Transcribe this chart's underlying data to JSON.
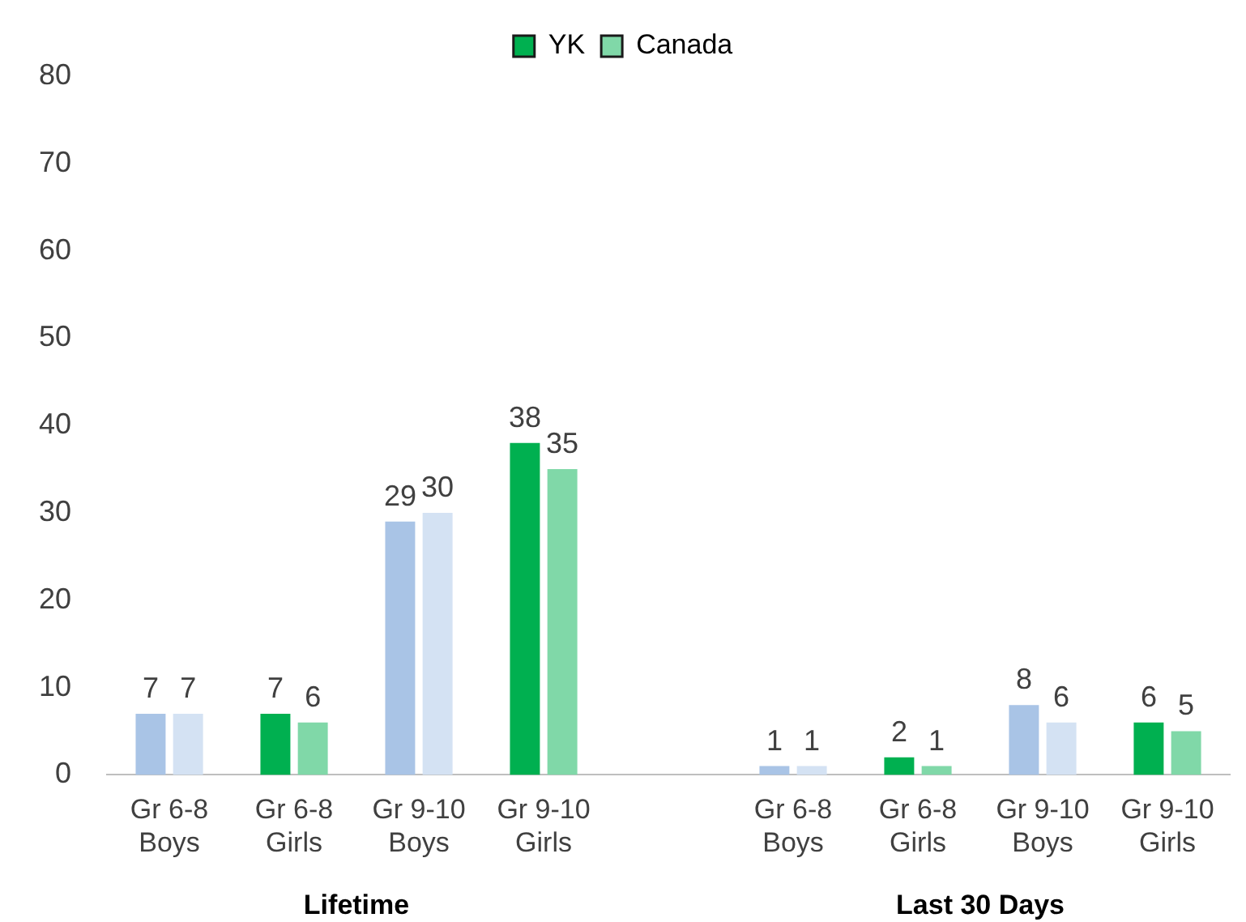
{
  "chart_data": {
    "type": "bar",
    "categories": [
      "Gr 6-8 Boys",
      "Gr 6-8 Girls",
      "Gr 9-10 Boys",
      "Gr 9-10 Girls",
      null,
      "Gr 6-8 Boys",
      "Gr 6-8 Girls",
      "Gr 9-10 Boys",
      "Gr 9-10 Girls"
    ],
    "series": [
      {
        "name": "YK",
        "color": "#00b050",
        "colors": [
          "#a9c4e6",
          "#00b050",
          "#a9c4e6",
          "#00b050",
          null,
          "#a9c4e6",
          "#00b050",
          "#a9c4e6",
          "#00b050"
        ],
        "values": [
          7,
          7,
          29,
          38,
          null,
          1,
          2,
          8,
          6
        ]
      },
      {
        "name": "Canada",
        "color": "#80d8a8",
        "colors": [
          "#d4e2f3",
          "#80d8a8",
          "#d4e2f3",
          "#80d8a8",
          null,
          "#d4e2f3",
          "#80d8a8",
          "#d4e2f3",
          "#80d8a8"
        ],
        "values": [
          7,
          6,
          30,
          35,
          null,
          1,
          1,
          6,
          5
        ]
      }
    ],
    "ylim": [
      0,
      80
    ],
    "yticks": [
      0,
      10,
      20,
      30,
      40,
      50,
      60,
      70,
      80
    ],
    "grid": false,
    "legend": "top",
    "data_labels": true,
    "annotations": [
      "Lifetime",
      "Last 30 Days"
    ]
  }
}
